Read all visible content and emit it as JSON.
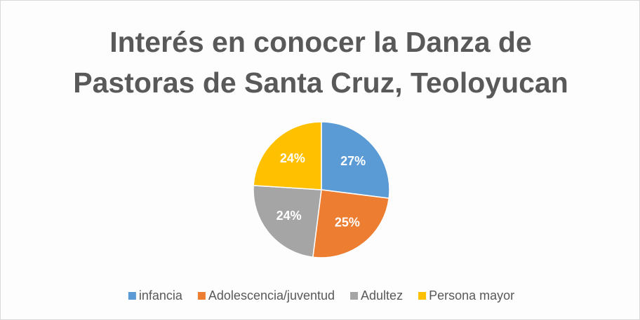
{
  "chart_data": {
    "type": "pie",
    "title": "Interés en conocer la Danza de Pastoras de Santa Cruz, Teoloyucan",
    "categories": [
      "infancia",
      "Adolescencia/juventud",
      "Adultez",
      "Persona mayor"
    ],
    "values": [
      27,
      25,
      24,
      24
    ],
    "value_labels": [
      "27%",
      "25%",
      "24%",
      "24%"
    ],
    "colors": [
      "#5b9bd5",
      "#ed7d31",
      "#a5a5a5",
      "#ffc000"
    ],
    "legend": "bottom"
  }
}
